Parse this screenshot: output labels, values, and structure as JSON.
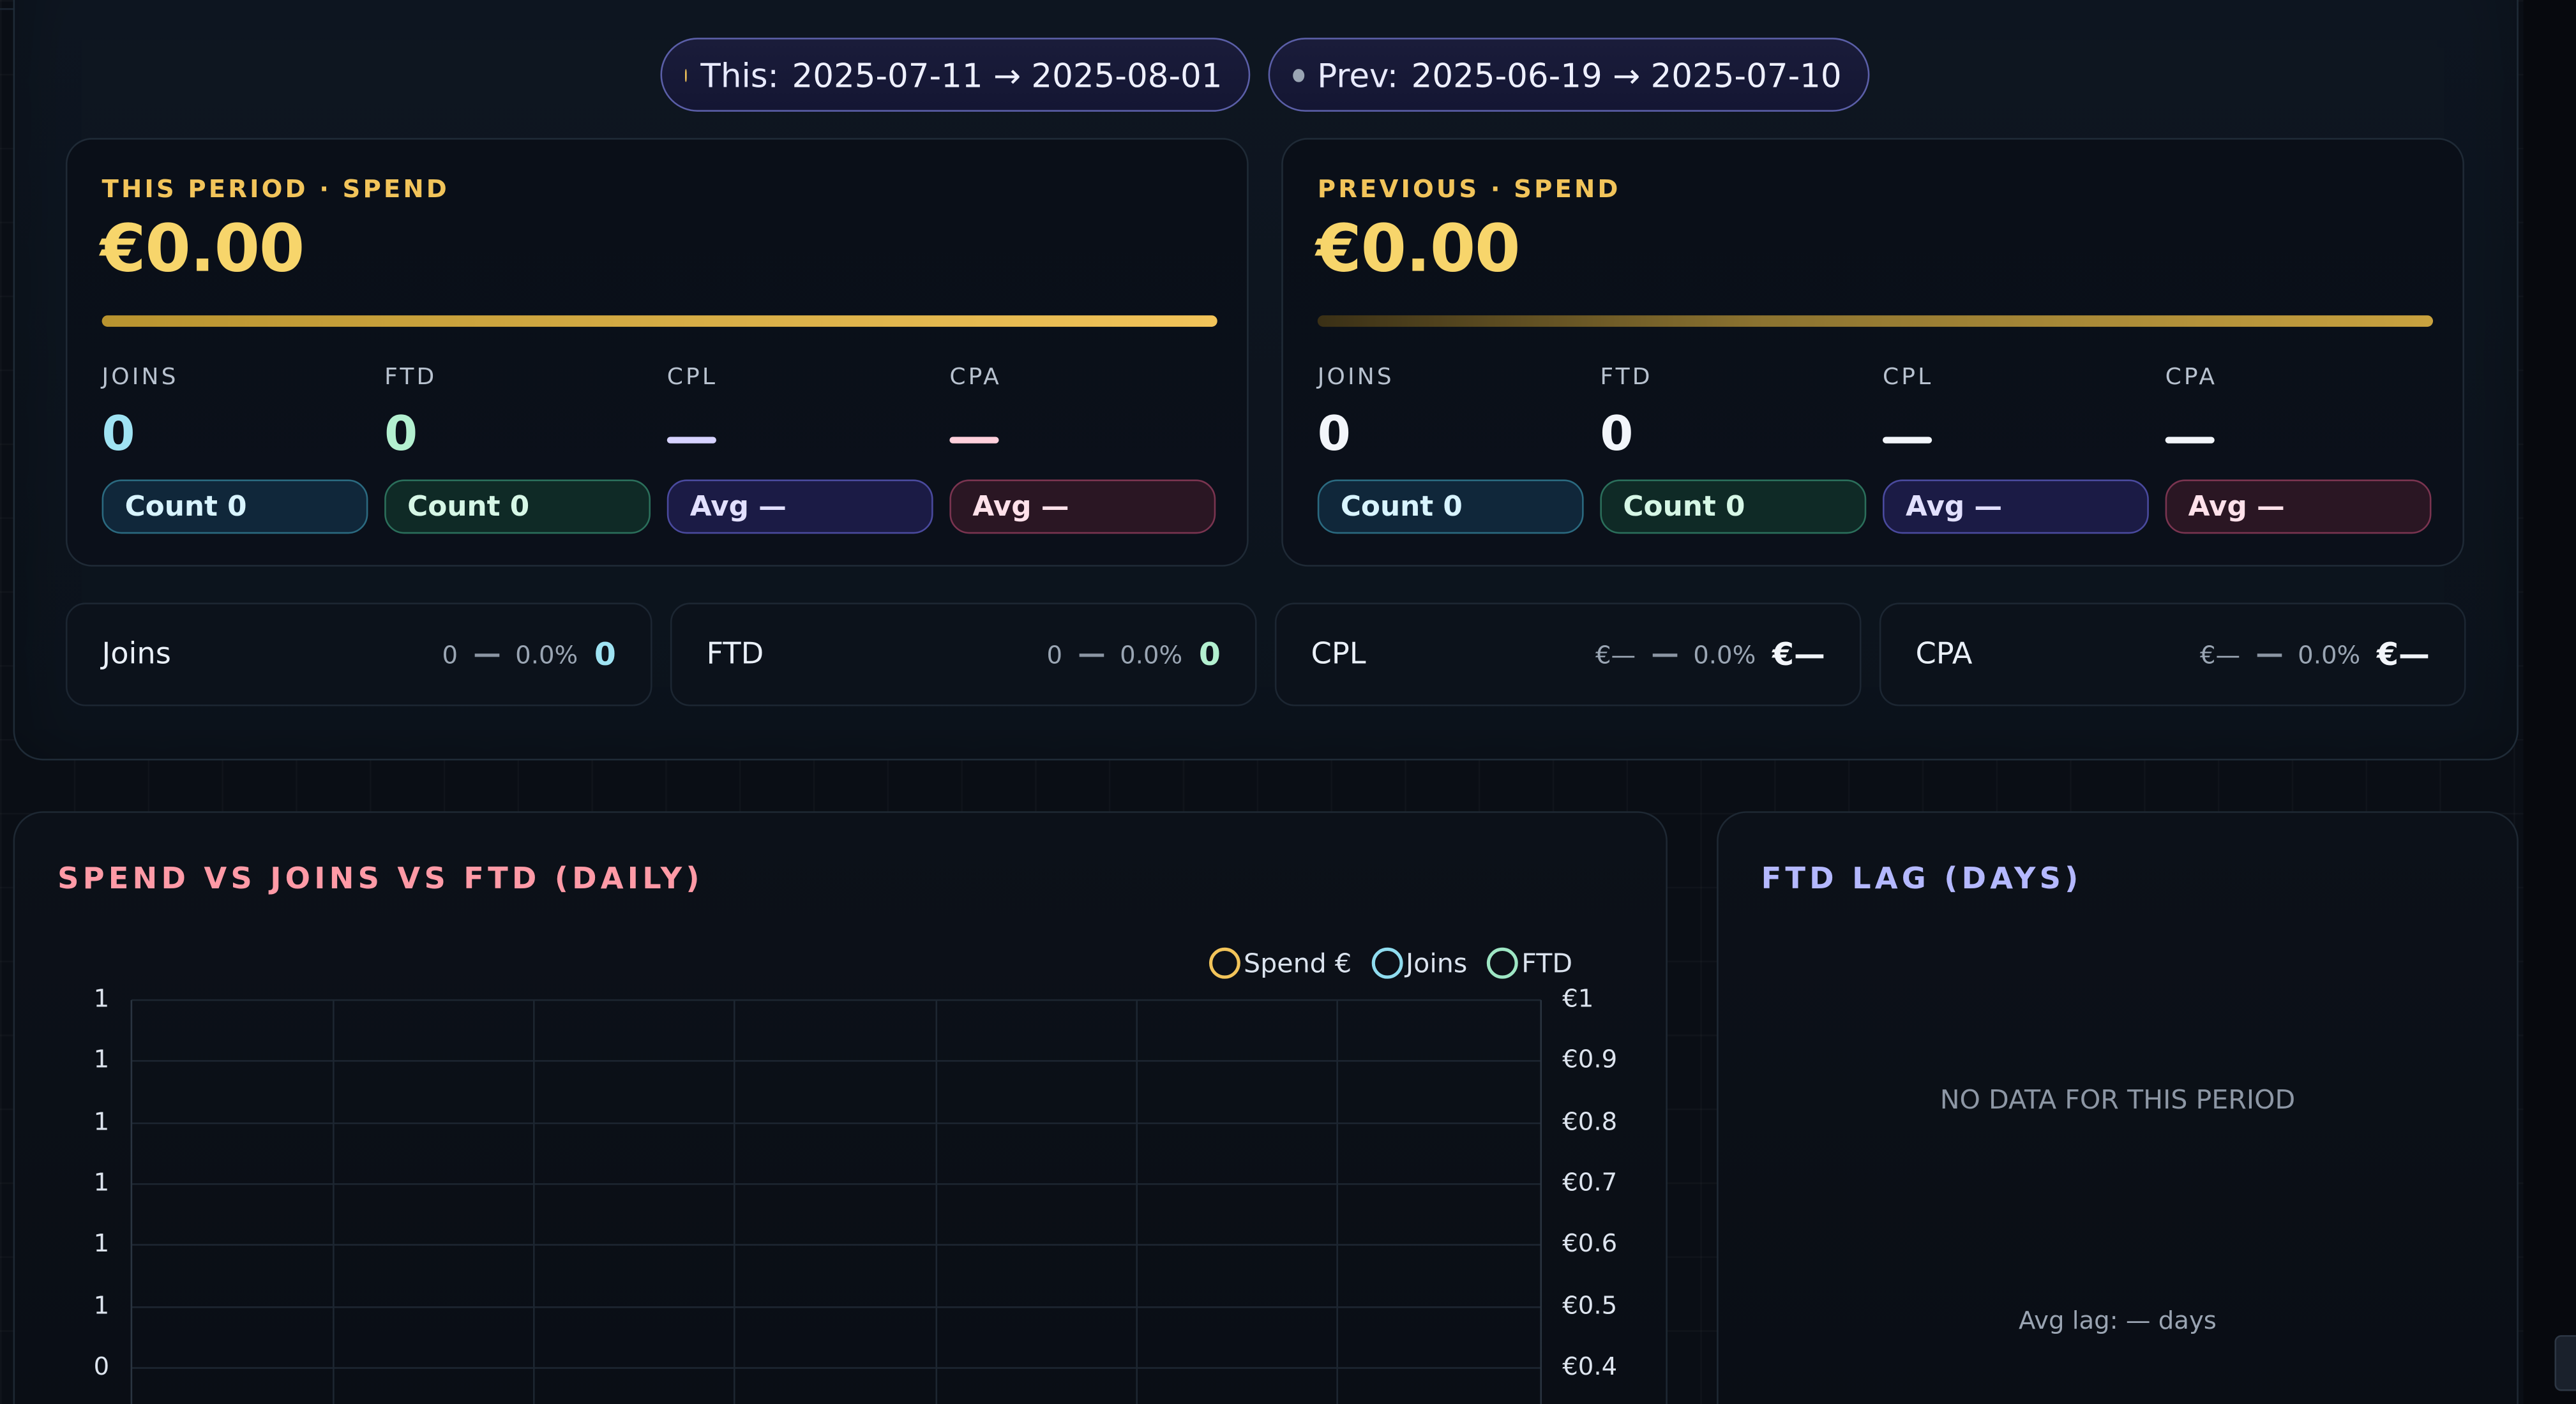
{
  "periods": {
    "this": {
      "label": "This:",
      "range": "2025-07-11 → 2025-08-01",
      "dot_color": "#f2c45a"
    },
    "prev": {
      "label": "Prev:",
      "range": "2025-06-19 → 2025-07-10",
      "dot_color": "#9aa5b3"
    }
  },
  "cards": [
    {
      "kicker": "THIS PERIOD · SPEND",
      "amount": "€0.00",
      "bar_fraction": 1.0,
      "metrics": [
        {
          "label": "JOINS",
          "value": "0",
          "chip": "Count 0"
        },
        {
          "label": "FTD",
          "value": "0",
          "chip": "Count 0"
        },
        {
          "label": "CPL",
          "value": "",
          "chip": "Avg —"
        },
        {
          "label": "CPA",
          "value": "",
          "chip": "Avg —"
        }
      ]
    },
    {
      "kicker": "PREVIOUS · SPEND",
      "amount": "€0.00",
      "bar_fraction": 1.0,
      "metrics": [
        {
          "label": "JOINS",
          "value": "0",
          "chip": "Count 0"
        },
        {
          "label": "FTD",
          "value": "0",
          "chip": "Count 0"
        },
        {
          "label": "CPL",
          "value": "",
          "chip": "Avg —"
        },
        {
          "label": "CPA",
          "value": "",
          "chip": "Avg —"
        }
      ]
    }
  ],
  "deltas": [
    {
      "name": "Joins",
      "prev": "0",
      "pct": "0.0%",
      "current": "0"
    },
    {
      "name": "FTD",
      "prev": "0",
      "pct": "0.0%",
      "current": "0"
    },
    {
      "name": "CPL",
      "prev": "€—",
      "pct": "0.0%",
      "current": "€—"
    },
    {
      "name": "CPA",
      "prev": "€—",
      "pct": "0.0%",
      "current": "€—"
    }
  ],
  "colors": {
    "joins": "#8fdcef",
    "ftd": "#9ee6c4",
    "spend": "#f2c45a",
    "cpl": "#c9c3ff",
    "cpa": "#ffc6d3"
  },
  "chart": {
    "title": "SPEND VS JOINS VS FTD (DAILY)",
    "legend": [
      "Spend €",
      "Joins",
      "FTD"
    ]
  },
  "chart_data": {
    "type": "line",
    "title": "SPEND VS JOINS VS FTD (DAILY)",
    "series": [
      {
        "name": "Spend €",
        "values": []
      },
      {
        "name": "Joins",
        "values": []
      },
      {
        "name": "FTD",
        "values": []
      }
    ],
    "y_left_ticks": [
      "1",
      "1",
      "1",
      "1",
      "1",
      "1",
      "0"
    ],
    "y_right_ticks": [
      "€1",
      "€0.9",
      "€0.8",
      "€0.7",
      "€0.6",
      "€0.5",
      "€0.4"
    ],
    "legend_position": "top-right",
    "grid": true
  },
  "lag": {
    "title": "FTD LAG (DAYS)",
    "empty": "NO DATA FOR THIS PERIOD",
    "avg": "Avg lag: — days"
  }
}
